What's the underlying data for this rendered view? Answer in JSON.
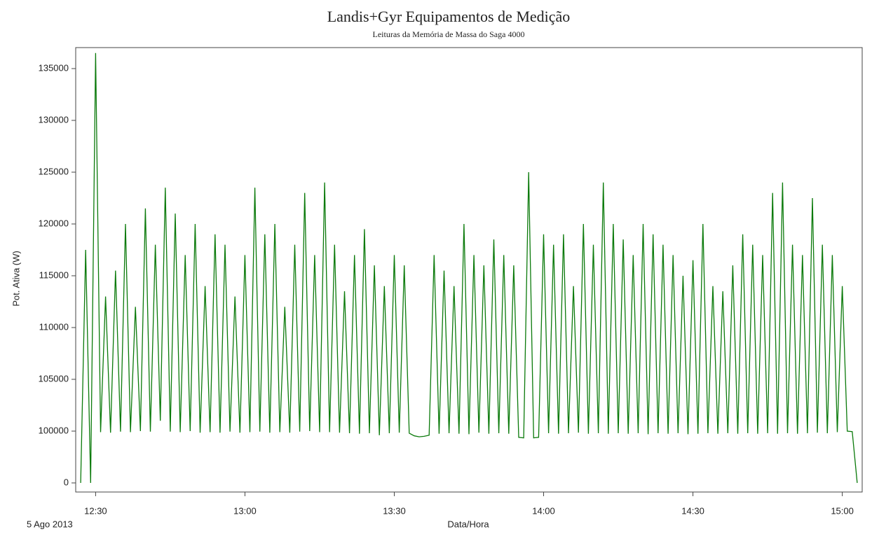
{
  "chart_data": {
    "type": "line",
    "title": "Landis+Gyr Equipamentos de Medição",
    "subtitle": "Leituras da Memória de Massa do Saga 4000",
    "y_label": "Pot. Ativa (W)",
    "x_label": "Data/Hora",
    "date_label": "5 Ago 2013",
    "xlim": [
      746,
      904
    ],
    "xticks": [
      {
        "value": 750,
        "label": "12:30"
      },
      {
        "value": 780,
        "label": "13:00"
      },
      {
        "value": 810,
        "label": "13:30"
      },
      {
        "value": 840,
        "label": "14:00"
      },
      {
        "value": 870,
        "label": "14:30"
      },
      {
        "value": 900,
        "label": "15:00"
      }
    ],
    "ylim": [
      0,
      137000
    ],
    "yticks": [
      0,
      100000,
      105000,
      110000,
      115000,
      120000,
      125000,
      130000,
      135000
    ],
    "grid": false,
    "x": [
      747,
      748,
      749,
      750,
      751,
      752,
      753,
      754,
      755,
      756,
      757,
      758,
      759,
      760,
      761,
      762,
      763,
      764,
      765,
      766,
      767,
      768,
      769,
      770,
      771,
      772,
      773,
      774,
      775,
      776,
      777,
      778,
      779,
      780,
      781,
      782,
      783,
      784,
      785,
      786,
      787,
      788,
      789,
      790,
      791,
      792,
      793,
      794,
      795,
      796,
      797,
      798,
      799,
      800,
      801,
      802,
      803,
      804,
      805,
      806,
      807,
      808,
      809,
      810,
      811,
      812,
      813,
      814,
      815,
      816,
      817,
      818,
      819,
      820,
      821,
      822,
      823,
      824,
      825,
      826,
      827,
      828,
      829,
      830,
      831,
      832,
      833,
      834,
      835,
      836,
      837,
      838,
      839,
      840,
      841,
      842,
      843,
      844,
      845,
      846,
      847,
      848,
      849,
      850,
      851,
      852,
      853,
      854,
      855,
      856,
      857,
      858,
      859,
      860,
      861,
      862,
      863,
      864,
      865,
      866,
      867,
      868,
      869,
      870,
      871,
      872,
      873,
      874,
      875,
      876,
      877,
      878,
      879,
      880,
      881,
      882,
      883,
      884,
      885,
      886,
      887,
      888,
      889,
      890,
      891,
      892,
      893,
      894,
      895,
      896,
      897,
      898,
      899,
      900,
      901,
      902,
      903
    ],
    "series": [
      {
        "name": "Pot. Ativa",
        "color": "#0b7a0b",
        "values": [
          0,
          117500,
          0,
          136500,
          98000,
          113000,
          97000,
          115500,
          99000,
          120000,
          98000,
          112000,
          100000,
          121500,
          99000,
          118000,
          101000,
          123500,
          99000,
          121000,
          98000,
          117000,
          100000,
          120000,
          97000,
          114000,
          98000,
          119000,
          97000,
          118000,
          99000,
          113000,
          97000,
          117000,
          98000,
          123500,
          99000,
          119000,
          97000,
          120000,
          98000,
          112000,
          97000,
          118000,
          99000,
          123000,
          100000,
          117000,
          98000,
          124000,
          98000,
          118000,
          97000,
          113500,
          96000,
          117000,
          95000,
          119500,
          96000,
          116000,
          92000,
          114000,
          96000,
          117000,
          97000,
          116000,
          96000,
          91000,
          89000,
          90000,
          92000,
          117000,
          95000,
          115500,
          96000,
          114000,
          95000,
          120000,
          94000,
          117000,
          97000,
          116000,
          95000,
          118500,
          96000,
          117000,
          95000,
          116000,
          88000,
          87000,
          125000,
          87000,
          88000,
          119000,
          96000,
          118000,
          95000,
          119000,
          96000,
          114000,
          97000,
          120000,
          95000,
          118000,
          96000,
          124000,
          95000,
          120000,
          96000,
          118500,
          95000,
          117000,
          96000,
          120000,
          94000,
          119000,
          96000,
          118000,
          95000,
          117000,
          96000,
          115000,
          94000,
          116500,
          95000,
          120000,
          96000,
          114000,
          95000,
          113500,
          96000,
          116000,
          95000,
          119000,
          96000,
          118000,
          95000,
          117000,
          96000,
          123000,
          95000,
          124000,
          96000,
          118000,
          95000,
          117000,
          96000,
          122500,
          97000,
          118000,
          96000,
          117000,
          98000,
          114000,
          100000,
          99000,
          0
        ]
      }
    ]
  }
}
